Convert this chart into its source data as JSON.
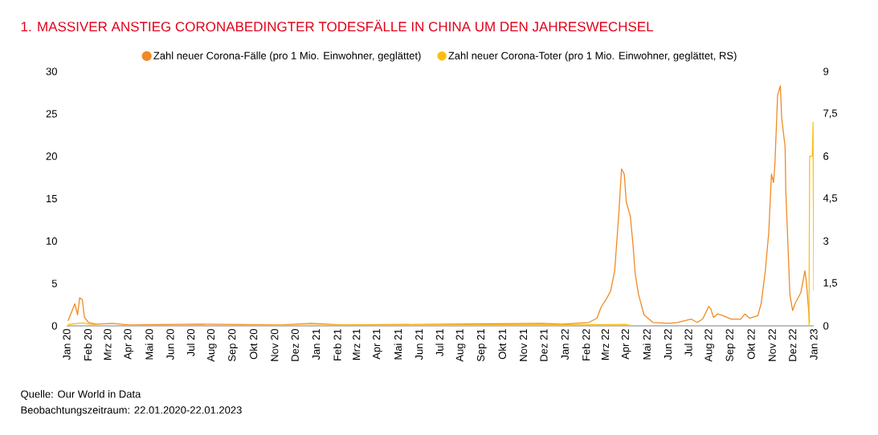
{
  "chart_data": {
    "type": "line",
    "title": "1.  MASSIVER ANSTIEG CORONABEDINGTER TODESFÄLLE IN CHINA UM DEN JAHRESWECHSEL",
    "annotations": [
      "Quelle: Our World in Data",
      "Beobachtungszeitraum: 22.01.2020-22.01.2023"
    ],
    "series": [
      {
        "name": "Zahl neuer Corona-Fälle (pro 1 Mio. Einwohner, geglättet)",
        "color": "#f08a24",
        "x": [
          "2020-01-24",
          "2020-02-03",
          "2020-02-07",
          "2020-02-10",
          "2020-02-14",
          "2020-02-17",
          "2020-02-23",
          "2020-03-06",
          "2020-03-29",
          "2020-04-22",
          "2020-08-01",
          "2020-12-01",
          "2021-01-15",
          "2021-03-01",
          "2021-08-01",
          "2021-12-20",
          "2022-01-18",
          "2022-02-26",
          "2022-03-10",
          "2022-03-16",
          "2022-03-24",
          "2022-03-30",
          "2022-04-05",
          "2022-04-11",
          "2022-04-15",
          "2022-04-19",
          "2022-04-22",
          "2022-04-28",
          "2022-05-02",
          "2022-05-05",
          "2022-05-10",
          "2022-05-18",
          "2022-05-31",
          "2022-06-24",
          "2022-07-06",
          "2022-07-26",
          "2022-08-04",
          "2022-08-12",
          "2022-08-21",
          "2022-08-24",
          "2022-08-28",
          "2022-09-03",
          "2022-09-11",
          "2022-09-23",
          "2022-10-07",
          "2022-10-13",
          "2022-10-20",
          "2022-11-01",
          "2022-11-06",
          "2022-11-12",
          "2022-11-17",
          "2022-11-21",
          "2022-11-24",
          "2022-11-26",
          "2022-11-30",
          "2022-12-04",
          "2022-12-06",
          "2022-12-11",
          "2022-12-12",
          "2022-12-18",
          "2022-12-22",
          "2022-12-26",
          "2023-01-03",
          "2023-01-09",
          "2023-01-11",
          "2023-01-16"
        ],
        "values": [
          0.6,
          2.6,
          1.3,
          3.3,
          3.1,
          1.0,
          0.4,
          0.2,
          0.3,
          0.1,
          0.2,
          0.1,
          0.3,
          0.1,
          0.2,
          0.3,
          0.2,
          0.4,
          0.9,
          2.2,
          3.2,
          4.1,
          6.5,
          13.2,
          18.5,
          17.9,
          14.6,
          12.9,
          9.4,
          6.2,
          3.7,
          1.3,
          0.4,
          0.3,
          0.4,
          0.8,
          0.4,
          0.8,
          2.3,
          2.0,
          1.0,
          1.4,
          1.2,
          0.8,
          0.8,
          1.4,
          0.9,
          1.2,
          2.7,
          6.5,
          11.0,
          17.9,
          16.9,
          19.0,
          27.2,
          28.3,
          24.5,
          21.1,
          16.0,
          3.7,
          1.8,
          2.7,
          3.9,
          6.5,
          5.3,
          0.4
        ]
      },
      {
        "name": "Zahl neuer Corona-Toter (pro 1 Mio. Einwohner, geglättet, RS)",
        "color": "#fbbf14",
        "axis": "y2",
        "x": [
          "2020-01-24",
          "2020-02-15",
          "2020-03-10",
          "2022-04-20",
          "2022-05-01",
          "2023-01-15",
          "2023-01-16",
          "2023-01-20",
          "2023-01-21",
          "2023-01-22"
        ],
        "values": [
          0.05,
          0.1,
          0,
          0.05,
          0,
          0,
          6.0,
          6.0,
          7.2,
          1.25
        ]
      }
    ],
    "xlim": [
      "2020-01-22",
      "2023-01-22"
    ],
    "xticks": [
      {
        "value": "2020-01-22",
        "label": "Jan 20"
      },
      {
        "value": "2020-02-22",
        "label": "Feb 20"
      },
      {
        "value": "2020-03-22",
        "label": "Mrz 20"
      },
      {
        "value": "2020-04-22",
        "label": "Apr 20"
      },
      {
        "value": "2020-05-22",
        "label": "Mai 20"
      },
      {
        "value": "2020-06-22",
        "label": "Jun 20"
      },
      {
        "value": "2020-07-22",
        "label": "Jul 20"
      },
      {
        "value": "2020-08-22",
        "label": "Aug 20"
      },
      {
        "value": "2020-09-22",
        "label": "Sep 20"
      },
      {
        "value": "2020-10-22",
        "label": "Okt 20"
      },
      {
        "value": "2020-11-22",
        "label": "Nov 20"
      },
      {
        "value": "2020-12-22",
        "label": "Dez 20"
      },
      {
        "value": "2021-01-22",
        "label": "Jan 21"
      },
      {
        "value": "2021-02-22",
        "label": "Feb 21"
      },
      {
        "value": "2021-03-22",
        "label": "Mrz 21"
      },
      {
        "value": "2021-04-22",
        "label": "Apr 21"
      },
      {
        "value": "2021-05-22",
        "label": "Mai 21"
      },
      {
        "value": "2021-06-22",
        "label": "Jun 21"
      },
      {
        "value": "2021-07-22",
        "label": "Jul 21"
      },
      {
        "value": "2021-08-22",
        "label": "Aug 21"
      },
      {
        "value": "2021-09-22",
        "label": "Sep 21"
      },
      {
        "value": "2021-10-22",
        "label": "Okt 21"
      },
      {
        "value": "2021-11-22",
        "label": "Nov 21"
      },
      {
        "value": "2021-12-22",
        "label": "Dez 21"
      },
      {
        "value": "2022-01-22",
        "label": "Jan 22"
      },
      {
        "value": "2022-02-22",
        "label": "Feb 22"
      },
      {
        "value": "2022-03-22",
        "label": "Mrz 22"
      },
      {
        "value": "2022-04-22",
        "label": "Apr 22"
      },
      {
        "value": "2022-05-22",
        "label": "Mai 22"
      },
      {
        "value": "2022-06-22",
        "label": "Jun 22"
      },
      {
        "value": "2022-07-22",
        "label": "Jul 22"
      },
      {
        "value": "2022-08-22",
        "label": "Aug 22"
      },
      {
        "value": "2022-09-22",
        "label": "Sep 22"
      },
      {
        "value": "2022-10-22",
        "label": "Okt 22"
      },
      {
        "value": "2022-11-22",
        "label": "Nov 22"
      },
      {
        "value": "2022-12-22",
        "label": "Dez 22"
      },
      {
        "value": "2023-01-22",
        "label": "Jan 23"
      }
    ],
    "ylim": [
      0,
      30
    ],
    "yticks": [
      0,
      5,
      10,
      15,
      20,
      25,
      30
    ],
    "y2lim": [
      0,
      9
    ],
    "y2ticks": [
      {
        "value": 0,
        "label": "0"
      },
      {
        "value": 1.5,
        "label": "1,5"
      },
      {
        "value": 3,
        "label": "3"
      },
      {
        "value": 4.5,
        "label": "4,5"
      },
      {
        "value": 6,
        "label": "6"
      },
      {
        "value": 7.5,
        "label": "7,5"
      },
      {
        "value": 9,
        "label": "9"
      }
    ],
    "legend": "top",
    "marker": "none",
    "line_style": "solid",
    "grid": false
  }
}
